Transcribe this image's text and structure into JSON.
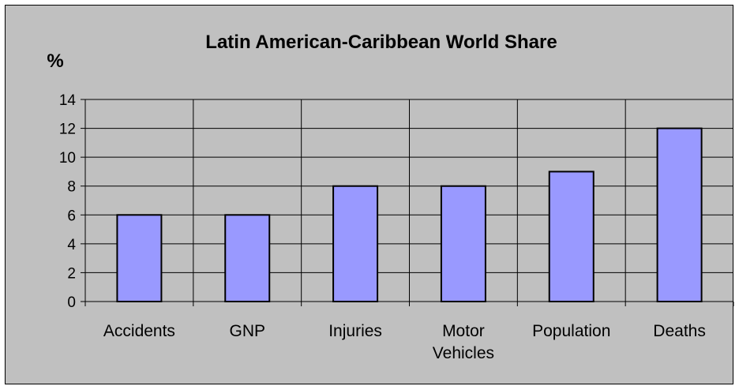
{
  "chart_data": {
    "type": "bar",
    "title": "Latin American-Caribbean World Share",
    "ylabel": "%",
    "xlabel": "",
    "categories": [
      [
        "Accidents"
      ],
      [
        "GNP"
      ],
      [
        "Injuries"
      ],
      [
        "Motor",
        "Vehicles"
      ],
      [
        "Population"
      ],
      [
        "Deaths"
      ]
    ],
    "values": [
      6,
      6,
      8,
      8,
      9,
      12
    ],
    "ylim": [
      0,
      14
    ],
    "yticks": [
      0,
      2,
      4,
      6,
      8,
      10,
      12,
      14
    ],
    "grid": true,
    "legend": "none",
    "colors": {
      "background": "#c0c0c0",
      "plot": "#c0c0c0",
      "bar": "#9999ff",
      "bar_edge": "#000000",
      "grid": "#000000"
    }
  }
}
